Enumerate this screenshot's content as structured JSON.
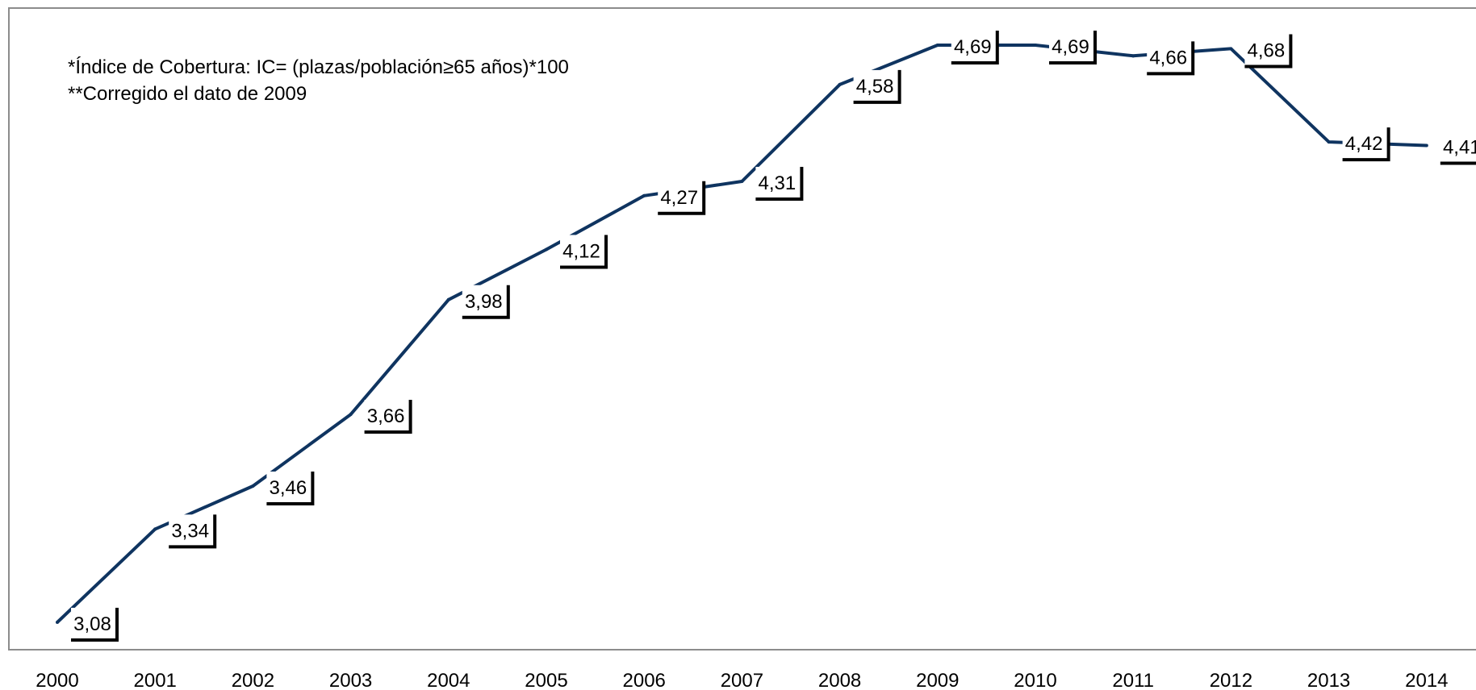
{
  "notes": [
    "*Índice de Cobertura: IC= (plazas/población≥65 años)*100",
    "**Corregido el dato de 2009"
  ],
  "colors": {
    "line": "#0f3460",
    "frame": "#8c8c8c",
    "label_shadow": "#000000"
  },
  "chart_data": {
    "type": "line",
    "categories": [
      "2000",
      "2001",
      "2002",
      "2003",
      "2004",
      "2005",
      "2006",
      "2007",
      "2008",
      "2009",
      "2010",
      "2011",
      "2012",
      "2013",
      "2014"
    ],
    "series": [
      {
        "values": [
          3.08,
          3.34,
          3.46,
          3.66,
          3.98,
          4.12,
          4.27,
          4.31,
          4.58,
          4.69,
          4.69,
          4.66,
          4.68,
          4.42,
          4.41
        ]
      }
    ],
    "data_labels": [
      "3,08",
      "3,34",
      "3,46",
      "3,66",
      "3,98",
      "4,12",
      "4,27",
      "4,31",
      "4,58",
      "4,69",
      "4,69",
      "4,66",
      "4,68",
      "4,42",
      "4,41"
    ],
    "grid": false,
    "legend": "none"
  }
}
